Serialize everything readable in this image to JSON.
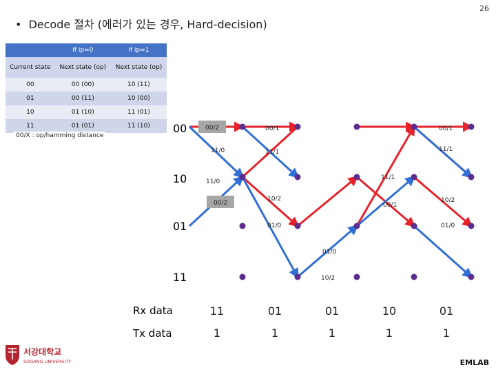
{
  "slide": {
    "number": "26",
    "title_bullet": "•",
    "title": "Decode 절차 (에러가 있는 경우, Hard-decision)",
    "branch_note": "00/X : op/hamming distance",
    "footer": "EMLAB"
  },
  "logo": {
    "name_kr": "서강대학교",
    "name_en": "SOGANG UNIVERSITY",
    "colors": {
      "crest": "#b5232e",
      "text": "#b5232e"
    }
  },
  "state_table": {
    "headers": [
      "",
      "If ip=0",
      "If ip=1"
    ],
    "subheaders": [
      "Current state",
      "Next state (op)",
      "Next state (op)"
    ],
    "rows": [
      [
        "00",
        "00 (00)",
        "10 (11)"
      ],
      [
        "01",
        "00 (11)",
        "10 (00)"
      ],
      [
        "10",
        "01 (10)",
        "11 (01)"
      ],
      [
        "11",
        "01 (01)",
        "11 (10)"
      ]
    ]
  },
  "trellis": {
    "states": [
      "00",
      "10",
      "01",
      "11"
    ],
    "colors": {
      "node": "#5b2d8e",
      "red_path": "#e8222a",
      "blue_path": "#2f6fd6",
      "label_box": "#a6a6a6"
    },
    "branch_labels": [
      {
        "text": "00/2",
        "boxed": true
      },
      {
        "text": "00/1",
        "boxed": false
      },
      {
        "text": "00/1",
        "boxed": false
      },
      {
        "text": "11/0",
        "boxed": false
      },
      {
        "text": "11/1",
        "boxed": false
      },
      {
        "text": "11/1",
        "boxed": false
      },
      {
        "text": "11/0",
        "boxed": false
      },
      {
        "text": "11/1",
        "boxed": false
      },
      {
        "text": "00/2",
        "boxed": true
      },
      {
        "text": "10/2",
        "boxed": false
      },
      {
        "text": "00/1",
        "boxed": false
      },
      {
        "text": "10/2",
        "boxed": false
      },
      {
        "text": "01/0",
        "boxed": false
      },
      {
        "text": "01/0",
        "boxed": false
      },
      {
        "text": "01/0",
        "boxed": false
      },
      {
        "text": "10/2",
        "boxed": false
      }
    ]
  },
  "sequence": {
    "rx_label": "Rx data",
    "tx_label": "Tx data",
    "rx_values": [
      "11",
      "01",
      "01",
      "10",
      "01"
    ],
    "tx_values": [
      "1",
      "1",
      "1",
      "1",
      "1"
    ]
  }
}
